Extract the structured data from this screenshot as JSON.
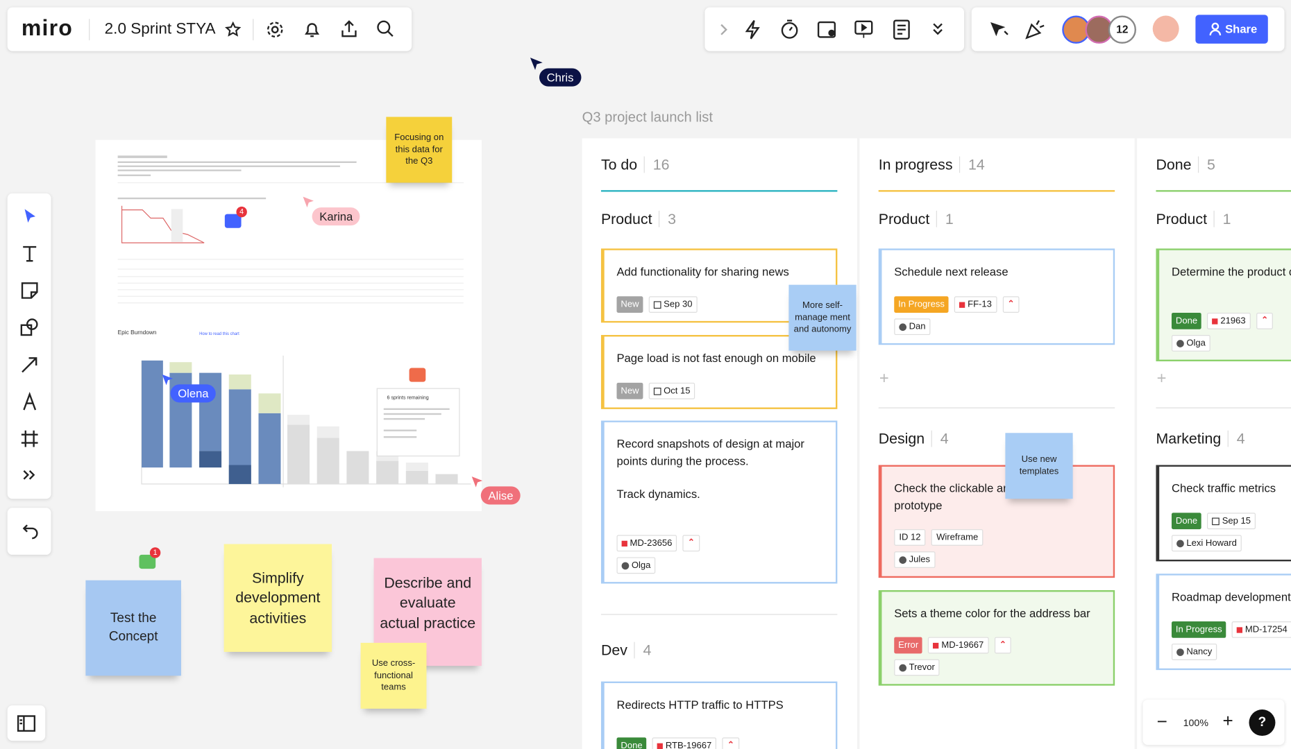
{
  "toolbar": {
    "logo": "miro",
    "board_name": "2.0 Sprint STYA",
    "collaborator_count": "12",
    "share": "Share"
  },
  "cursors": [
    "Chris",
    "Karina",
    "Olena",
    "Alise"
  ],
  "zoom": {
    "level": "100%",
    "help": "?"
  },
  "embed": {
    "title": "Epic Burndown",
    "help_link": "How to read this chart",
    "remaining": "6 sprints remaining"
  },
  "comment_badges": [
    "4",
    "1"
  ],
  "stickies": [
    {
      "text": "Focusing on this data for the Q3",
      "color": "#f5d13b"
    },
    {
      "text": "More self-manage ment and autonomy",
      "color": "#a9cdf5"
    },
    {
      "text": "Use new templates",
      "color": "#a9cdf5"
    },
    {
      "text": "Test the Concept",
      "color": "#a6c8f2"
    },
    {
      "text": "Simplify development activities",
      "color": "#fdf59a"
    },
    {
      "text": "Describe and evaluate actual practice",
      "color": "#fbc6d8"
    },
    {
      "text": "Use cross-functional teams",
      "color": "#fdf38e"
    }
  ],
  "board": {
    "title": "Q3 project launch list",
    "columns": [
      {
        "name": "To do",
        "count": 16,
        "accent": "#2bb3c0",
        "groups": [
          {
            "name": "Product",
            "count": 3,
            "cards": [
              {
                "title": "Add functionality for sharing news",
                "border_color": "#f5c242",
                "background": "#ffffff",
                "status": {
                  "label": "New",
                  "color": "#a3a3a3"
                },
                "tags": [
                  {
                    "text": "Sep 30",
                    "icon": "calendar"
                  }
                ]
              },
              {
                "title": "Page load is not fast enough on mobile",
                "border_color": "#f5c242",
                "background": "#ffffff",
                "status": {
                  "label": "New",
                  "color": "#a3a3a3"
                },
                "tags": [
                  {
                    "text": "Oct 15",
                    "icon": "calendar"
                  }
                ]
              },
              {
                "title": "Record snapshots of design at major points during the process.",
                "description": "Track dynamics.",
                "border_color": "#a9cdf5",
                "background": "#ffffff",
                "tags": [
                  {
                    "text": "MD-23656",
                    "icon": "issue"
                  }
                ],
                "priority": true,
                "assignee": "Olga"
              }
            ]
          },
          {
            "name": "Dev",
            "count": 4,
            "cards": [
              {
                "title": "Redirects HTTP traffic to HTTPS",
                "border_color": "#a9cdf5",
                "background": "#ffffff",
                "status": {
                  "label": "Done",
                  "color": "#3a8a3a"
                },
                "tags": [
                  {
                    "text": "RTB-19667",
                    "icon": "issue"
                  }
                ],
                "priority": true
              }
            ]
          }
        ]
      },
      {
        "name": "In progress",
        "count": 14,
        "accent": "#f5c242",
        "groups": [
          {
            "name": "Product",
            "count": 1,
            "cards": [
              {
                "title": "Schedule next release",
                "border_color": "#a9cdf5",
                "background": "#ffffff",
                "status": {
                  "label": "In Progress",
                  "color": "#f5a623"
                },
                "tags": [
                  {
                    "text": "FF-13",
                    "icon": "issue"
                  }
                ],
                "priority": true,
                "assignee": "Dan"
              }
            ]
          },
          {
            "name": "Design",
            "count": 4,
            "cards": [
              {
                "title": "Check the clickable areas of the prototype",
                "border_color": "#ee6a5f",
                "background": "#fdeceb",
                "tags": [
                  {
                    "text": "ID 12",
                    "icon": "none"
                  },
                  {
                    "text": "Wireframe",
                    "icon": "none"
                  }
                ],
                "assignee": "Jules"
              },
              {
                "title": "Sets a theme color for the address bar",
                "border_color": "#8bd06b",
                "background": "#f1f9ec",
                "status": {
                  "label": "Error",
                  "color": "#e86a6a"
                },
                "tags": [
                  {
                    "text": "MD-19667",
                    "icon": "issue"
                  }
                ],
                "priority": true,
                "assignee": "Trevor"
              }
            ]
          }
        ]
      },
      {
        "name": "Done",
        "count": 5,
        "accent": "#8bd06b",
        "groups": [
          {
            "name": "Product",
            "count": 1,
            "cards": [
              {
                "title": "Determine the product customer support",
                "border_color": "#8bd06b",
                "background": "#f1f9ec",
                "status": {
                  "label": "Done",
                  "color": "#3a8a3a"
                },
                "tags": [
                  {
                    "text": "21963",
                    "icon": "issue"
                  }
                ],
                "priority": true,
                "assignee": "Olga"
              }
            ]
          },
          {
            "name": "Marketing",
            "count": 4,
            "cards": [
              {
                "title": "Check traffic metrics",
                "border_color": "#333333",
                "background": "#ffffff",
                "status": {
                  "label": "Done",
                  "color": "#3a8a3a"
                },
                "tags": [
                  {
                    "text": "Sep 15",
                    "icon": "calendar"
                  }
                ],
                "assignee": "Lexi Howard"
              },
              {
                "title": "Roadmap development",
                "border_color": "#a9cdf5",
                "background": "#ffffff",
                "status": {
                  "label": "In Progress",
                  "color": "#3a8a3a"
                },
                "tags": [
                  {
                    "text": "MD-17254",
                    "icon": "issue"
                  }
                ],
                "assignee": "Nancy"
              }
            ]
          }
        ]
      }
    ]
  }
}
